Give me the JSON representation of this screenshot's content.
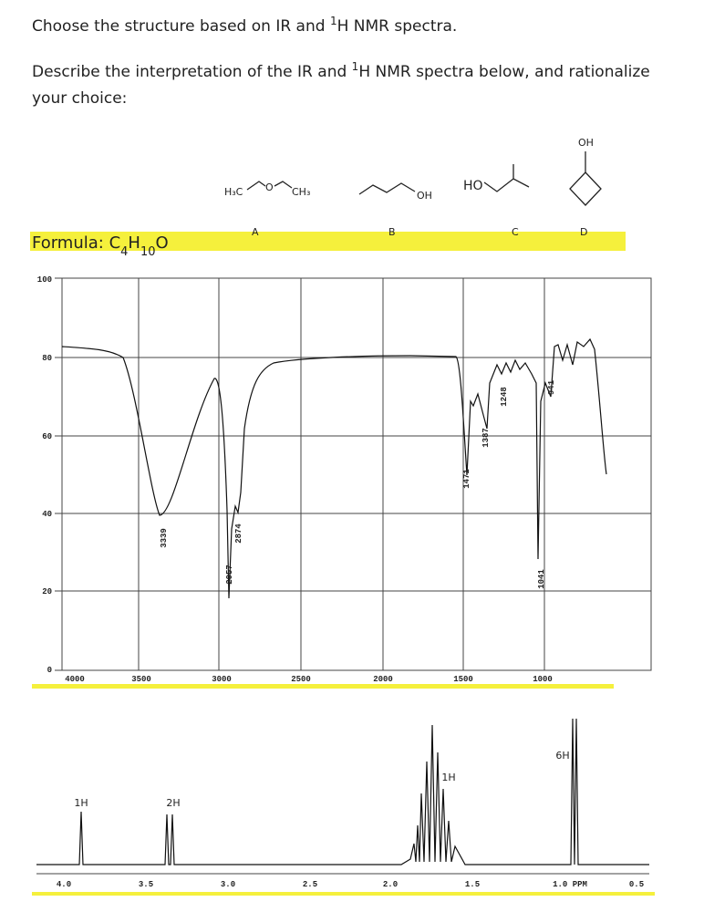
{
  "title": {
    "before": "Choose the structure based on IR and ",
    "sup": "1",
    "after": "H NMR spectra."
  },
  "prompt": {
    "line1_before": "Describe the interpretation of the IR and ",
    "sup": "1",
    "line1_after": "H NMR spectra below, and rationalize",
    "line2": "your choice:"
  },
  "structures": [
    {
      "label": "A",
      "atoms": [
        "H₃C",
        "O",
        "CH₃"
      ]
    },
    {
      "label": "B",
      "atoms": [
        "OH"
      ]
    },
    {
      "label": "C",
      "atoms": [
        "HO"
      ]
    },
    {
      "label": "D",
      "atoms": [
        "OH"
      ]
    }
  ],
  "formula": {
    "text": "Formula: C",
    "n1": "4",
    "h": "H",
    "n2": "10",
    "o": "O"
  },
  "ir": {
    "yticks": [
      "100",
      "80",
      "60",
      "40",
      "20",
      "0"
    ],
    "xticks": [
      "4000",
      "3500",
      "3000",
      "2500",
      "2000",
      "1500",
      "1000"
    ],
    "peaks": [
      "3339",
      "2957",
      "2874",
      "1471",
      "1387",
      "1248",
      "1041",
      "941"
    ]
  },
  "nmr": {
    "integrals": [
      "1H",
      "2H",
      "1H",
      "6H"
    ],
    "xticks": [
      "4.0",
      "3.5",
      "3.0",
      "2.5",
      "2.0",
      "1.5",
      "1.0 PPM",
      "0.5"
    ]
  }
}
